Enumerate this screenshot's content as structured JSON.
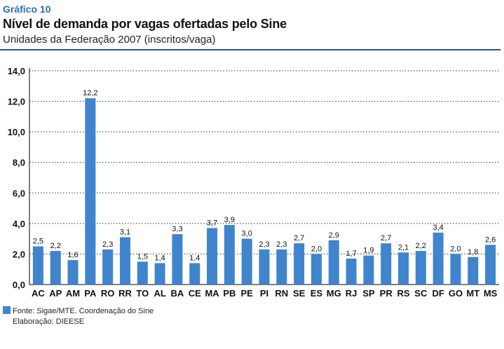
{
  "header": {
    "figure_label": "Gráfico 10",
    "title": "Nível de demanda por vagas ofertadas pelo Sine",
    "subtitle": "Unidades da Federação 2007 (inscritos/vaga)"
  },
  "footer": {
    "source": "Fonte: Sigae/MTE. Coordenação do Sine",
    "credit": "Elaboração: DIEESE"
  },
  "colors": {
    "bar": "#3f84cc",
    "grid": "#333333",
    "axis": "#000000",
    "accent": "#2a6db5"
  },
  "chart_data": {
    "type": "bar",
    "title": "Nível de demanda por vagas ofertadas pelo Sine",
    "xlabel": "",
    "ylabel": "inscritos/vaga",
    "ylim": [
      0,
      14
    ],
    "yticks": [
      "0,0",
      "2,0",
      "4,0",
      "6,0",
      "8,0",
      "10,0",
      "12,0",
      "14,0"
    ],
    "grid": true,
    "categories": [
      "AC",
      "AP",
      "AM",
      "PA",
      "RO",
      "RR",
      "TO",
      "AL",
      "BA",
      "CE",
      "MA",
      "PB",
      "PE",
      "PI",
      "RN",
      "SE",
      "ES",
      "MG",
      "RJ",
      "SP",
      "PR",
      "RS",
      "SC",
      "DF",
      "GO",
      "MT",
      "MS"
    ],
    "values": [
      2.5,
      2.2,
      1.6,
      12.2,
      2.3,
      3.1,
      1.5,
      1.4,
      3.3,
      1.4,
      3.7,
      3.9,
      3.0,
      2.3,
      2.3,
      2.7,
      2.0,
      2.9,
      1.7,
      1.9,
      2.7,
      2.1,
      2.2,
      3.4,
      2.0,
      1.8,
      2.6
    ],
    "labels": [
      "2,5",
      "2,2",
      "1,6",
      "12,2",
      "2,3",
      "3,1",
      "1,5",
      "1,4",
      "3,3",
      "1,4",
      "3,7",
      "3,9",
      "3,0",
      "2,3",
      "2,3",
      "2,7",
      "2,0",
      "2,9",
      "1,7",
      "1,9",
      "2,7",
      "2,1",
      "2,2",
      "3,4",
      "2,0",
      "1,8",
      "2,6"
    ]
  }
}
